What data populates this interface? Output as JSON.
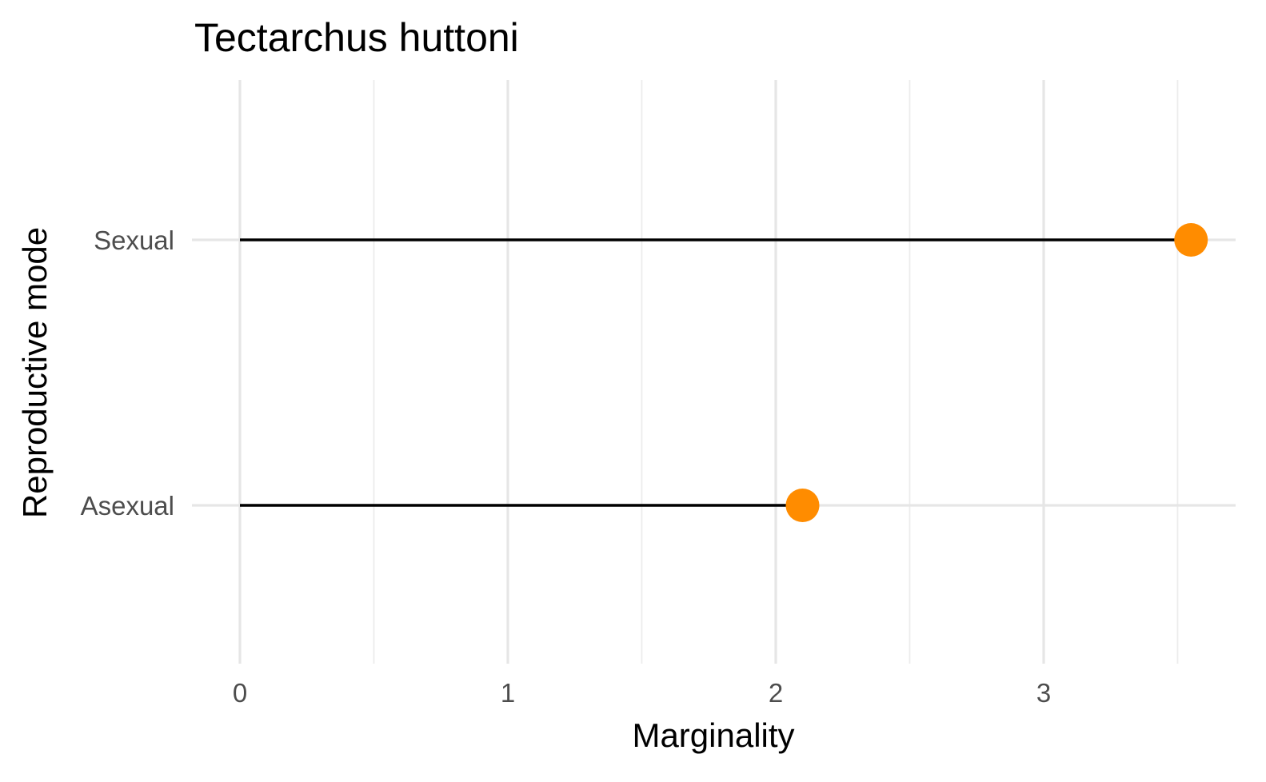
{
  "chart_data": {
    "type": "lollipop",
    "title": "Tectarchus huttoni",
    "xlabel": "Marginality",
    "ylabel": "Reproductive mode",
    "categories": [
      "Sexual",
      "Asexual"
    ],
    "values": [
      3.55,
      2.1
    ],
    "x_ticks": [
      "0",
      "1",
      "2",
      "3"
    ],
    "x_tick_values": [
      0,
      1,
      2,
      3
    ],
    "x_minor_values": [
      0.5,
      1.5,
      2.5,
      3.5
    ],
    "xlim": [
      0,
      3.55
    ],
    "grid": true,
    "point_color": "#ff8c00",
    "stem_color": "#000000"
  }
}
